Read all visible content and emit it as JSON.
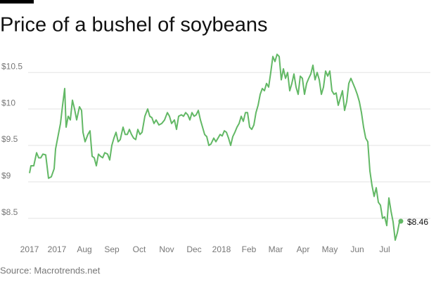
{
  "chart_data": {
    "type": "line",
    "title": "Price of a bushel of soybeans",
    "source": "Source: Macrotrends.net",
    "end_label": "$8.46",
    "color": "#62b865",
    "grid": true,
    "xlim": [
      0,
      528
    ],
    "xticks": [
      {
        "value": 0,
        "label": "2017"
      },
      {
        "value": 39,
        "label": "2017"
      },
      {
        "value": 78,
        "label": "Aug"
      },
      {
        "value": 117,
        "label": "Sep"
      },
      {
        "value": 156,
        "label": "Oct"
      },
      {
        "value": 195,
        "label": "Nov"
      },
      {
        "value": 234,
        "label": "Dec"
      },
      {
        "value": 273,
        "label": "2018"
      },
      {
        "value": 312,
        "label": "Feb"
      },
      {
        "value": 350,
        "label": "Mar"
      },
      {
        "value": 389,
        "label": "Apr"
      },
      {
        "value": 427,
        "label": "May"
      },
      {
        "value": 466,
        "label": "Jun"
      },
      {
        "value": 505,
        "label": "Jul"
      }
    ],
    "ylim": [
      8.17,
      10.82
    ],
    "yticks": [
      {
        "value": 8.5,
        "label": "$8.5"
      },
      {
        "value": 9,
        "label": "$9"
      },
      {
        "value": 9.5,
        "label": "$9.5"
      },
      {
        "value": 10,
        "label": "$10"
      },
      {
        "value": 10.5,
        "label": "$10.5"
      }
    ],
    "x": [
      0,
      2,
      6,
      10,
      13,
      16,
      19,
      23,
      27,
      31,
      35,
      37,
      40,
      44,
      47,
      50,
      52,
      55,
      58,
      61,
      64,
      67,
      71,
      74,
      76,
      79,
      83,
      86,
      89,
      92,
      95,
      98,
      101,
      104,
      107,
      111,
      114,
      117,
      120,
      123,
      126,
      129,
      133,
      136,
      139,
      142,
      145,
      148,
      151,
      154,
      157,
      160,
      164,
      168,
      171,
      174,
      177,
      180,
      184,
      188,
      192,
      196,
      199,
      202,
      206,
      209,
      212,
      216,
      219,
      222,
      225,
      228,
      231,
      234,
      237,
      240,
      243,
      246,
      249,
      252,
      255,
      258,
      262,
      265,
      268,
      271,
      274,
      277,
      280,
      283,
      286,
      289,
      292,
      295,
      298,
      301,
      304,
      307,
      310,
      313,
      316,
      319,
      322,
      325,
      328,
      331,
      334,
      337,
      340,
      343,
      346,
      349,
      352,
      355,
      358,
      361,
      364,
      367,
      370,
      373,
      376,
      379,
      382,
      385,
      388,
      391,
      394,
      397,
      400,
      403,
      406,
      409,
      412,
      415,
      418,
      421,
      424,
      427,
      430,
      433,
      436,
      439,
      442,
      445,
      448,
      451,
      454,
      457,
      460,
      463,
      466,
      469,
      472,
      475,
      478,
      481,
      484,
      487,
      490,
      493,
      496,
      499,
      502,
      505,
      508,
      511,
      514,
      517,
      520,
      523,
      526,
      528
    ],
    "values": [
      9.12,
      9.22,
      9.22,
      9.4,
      9.33,
      9.33,
      9.38,
      9.37,
      9.05,
      9.07,
      9.18,
      9.45,
      9.6,
      9.8,
      10.05,
      10.28,
      9.75,
      9.9,
      9.85,
      10.12,
      10.0,
      9.85,
      10.03,
      9.98,
      9.68,
      9.55,
      9.65,
      9.7,
      9.35,
      9.33,
      9.22,
      9.38,
      9.35,
      9.33,
      9.4,
      9.38,
      9.3,
      9.5,
      9.6,
      9.68,
      9.55,
      9.58,
      9.75,
      9.65,
      9.65,
      9.72,
      9.65,
      9.6,
      9.58,
      9.72,
      9.65,
      9.68,
      9.9,
      10.0,
      9.9,
      9.88,
      9.8,
      9.85,
      9.78,
      9.8,
      9.85,
      9.95,
      9.9,
      9.8,
      9.85,
      9.72,
      9.9,
      9.92,
      9.9,
      9.95,
      9.92,
      9.85,
      9.95,
      9.9,
      9.92,
      9.98,
      9.85,
      9.75,
      9.65,
      9.62,
      9.5,
      9.52,
      9.6,
      9.55,
      9.6,
      9.65,
      9.63,
      9.7,
      9.68,
      9.6,
      9.5,
      9.62,
      9.68,
      9.75,
      9.8,
      9.9,
      9.83,
      9.95,
      9.95,
      9.75,
      9.72,
      9.78,
      9.95,
      10.05,
      10.2,
      10.28,
      10.25,
      10.35,
      10.3,
      10.5,
      10.72,
      10.65,
      10.75,
      10.72,
      10.4,
      10.55,
      10.42,
      10.5,
      10.25,
      10.35,
      10.48,
      10.3,
      10.2,
      10.45,
      10.42,
      10.2,
      10.35,
      10.42,
      10.48,
      10.6,
      10.4,
      10.5,
      10.4,
      10.2,
      10.3,
      10.52,
      10.45,
      10.52,
      10.25,
      10.2,
      10.22,
      10.05,
      10.15,
      10.25,
      9.98,
      10.1,
      10.35,
      10.42,
      10.35,
      10.28,
      10.2,
      10.1,
      9.95,
      9.75,
      9.6,
      9.55,
      9.15,
      8.95,
      8.8,
      8.92,
      8.72,
      8.68,
      8.5,
      8.52,
      8.4,
      8.78,
      8.6,
      8.45,
      8.2,
      8.3,
      8.45,
      8.46
    ]
  }
}
